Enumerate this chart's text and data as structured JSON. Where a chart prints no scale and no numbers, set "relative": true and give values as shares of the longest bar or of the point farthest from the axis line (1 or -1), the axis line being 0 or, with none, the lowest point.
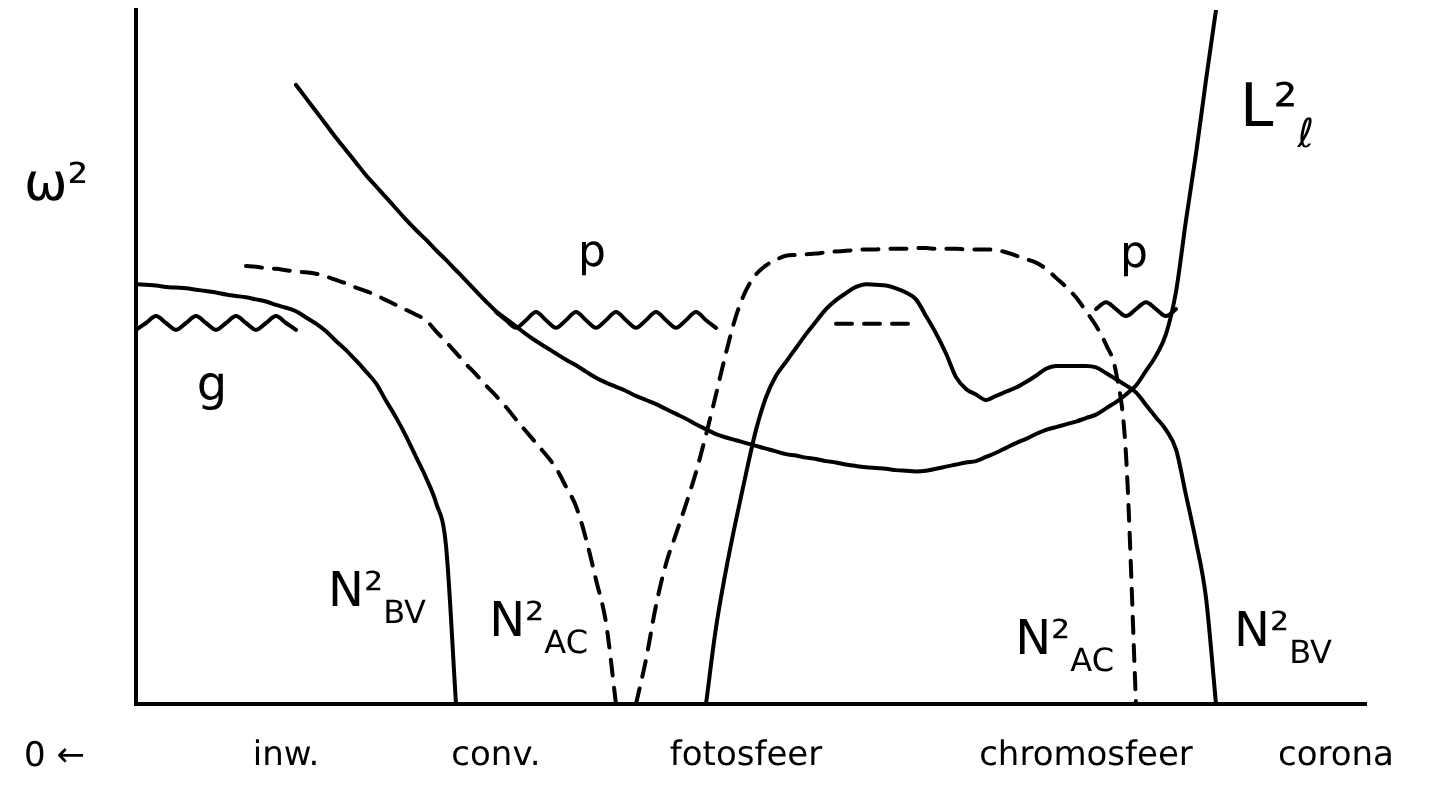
{
  "chart_data": {
    "type": "line",
    "relative": true,
    "ylabel": "ω²",
    "annotations": [
      "0 ←"
    ],
    "marker": "none",
    "categories": [
      null,
      null,
      null,
      null,
      null,
      null,
      null,
      null,
      null,
      null,
      null,
      null,
      null,
      null,
      null,
      "inw.",
      null,
      null,
      null,
      null,
      null,
      null,
      null,
      null,
      null,
      null,
      null,
      null,
      null,
      null,
      null,
      null,
      null,
      null,
      null,
      null,
      "conv.",
      null,
      null,
      null,
      null,
      null,
      null,
      null,
      null,
      null,
      null,
      null,
      null,
      null,
      null,
      null,
      null,
      null,
      null,
      null,
      null,
      null,
      null,
      null,
      null,
      "fotosfeer",
      null,
      null,
      null,
      null,
      null,
      null,
      null,
      null,
      null,
      null,
      null,
      null,
      null,
      null,
      null,
      null,
      null,
      null,
      null,
      null,
      null,
      null,
      null,
      null,
      null,
      null,
      null,
      null,
      null,
      null,
      null,
      null,
      null,
      "chromosfeer",
      null,
      null,
      null,
      null,
      null,
      null,
      null,
      null,
      null,
      null,
      null,
      null,
      null,
      null,
      null,
      null,
      null,
      null,
      null,
      null,
      null,
      null,
      null,
      null,
      "corona",
      null,
      null,
      null
    ],
    "series": [
      {
        "name": "L²$_{ℓ}$",
        "color": "#000000",
        "line_style": "solid",
        "values": [
          null,
          null,
          null,
          null,
          null,
          null,
          null,
          null,
          null,
          null,
          null,
          null,
          null,
          null,
          null,
          null,
          0.892,
          0.873,
          0.854,
          0.835,
          0.816,
          0.798,
          0.78,
          0.762,
          0.746,
          0.73,
          0.714,
          0.698,
          0.683,
          0.669,
          0.654,
          0.64,
          0.625,
          0.61,
          0.595,
          0.58,
          0.566,
          0.555,
          0.544,
          0.533,
          0.523,
          0.514,
          0.505,
          0.496,
          0.488,
          0.479,
          0.47,
          0.463,
          0.457,
          0.451,
          0.444,
          0.438,
          0.432,
          0.425,
          0.418,
          0.411,
          0.403,
          0.396,
          0.389,
          0.384,
          0.38,
          0.376,
          0.372,
          0.368,
          0.364,
          0.36,
          0.358,
          0.355,
          0.353,
          0.35,
          0.348,
          0.345,
          0.343,
          0.341,
          0.34,
          0.339,
          0.337,
          0.336,
          0.335,
          0.336,
          0.339,
          0.342,
          0.345,
          0.348,
          0.35,
          0.356,
          0.362,
          0.369,
          0.376,
          0.382,
          0.389,
          0.395,
          0.399,
          0.403,
          0.407,
          0.412,
          0.417,
          0.426,
          0.435,
          0.446,
          0.459,
          0.48,
          0.502,
          0.533,
          0.594,
          0.697,
          0.793,
          0.899,
          1,
          null,
          null,
          null,
          null,
          null,
          null,
          null,
          null,
          null,
          null,
          null,
          null,
          null,
          null,
          null
        ]
      },
      {
        "name": "N²$_{BV}$",
        "color": "#000000",
        "line_style": "solid",
        "values": [
          0.605,
          0.604,
          0.603,
          0.601,
          0.6,
          0.599,
          0.597,
          0.595,
          0.593,
          0.59,
          0.588,
          0.586,
          0.583,
          0.58,
          0.575,
          0.571,
          0.566,
          0.557,
          0.548,
          0.537,
          0.523,
          0.51,
          0.495,
          0.479,
          0.462,
          0.437,
          0.413,
          0.386,
          0.356,
          0.326,
          0.29,
          0.228,
          0,
          null,
          null,
          null,
          null,
          null,
          null,
          null,
          null,
          null,
          null,
          null,
          null,
          null,
          null,
          null,
          null,
          null,
          null,
          null,
          null,
          null,
          null,
          null,
          null,
          null,
          null,
          null,
          null,
          null,
          null,
          null,
          null,
          null,
          null,
          null,
          null,
          null,
          null,
          null,
          null,
          null,
          null,
          null,
          null,
          null,
          null,
          null,
          null,
          null,
          null,
          null,
          null,
          null,
          null,
          null,
          null,
          null,
          null,
          null,
          null,
          null,
          null,
          null,
          null,
          null,
          null,
          null,
          null,
          null,
          null,
          null,
          null,
          null,
          null,
          null,
          null,
          null,
          null,
          null,
          null,
          null,
          null,
          null,
          null,
          null,
          null,
          null,
          null,
          null,
          null,
          null
        ]
      },
      {
        "name": "N²$_{AC}$",
        "color": "#000000",
        "line_style": "dashed",
        "values": [
          null,
          null,
          null,
          null,
          null,
          null,
          null,
          null,
          null,
          null,
          null,
          0.631,
          0.63,
          0.628,
          0.627,
          0.625,
          0.623,
          0.622,
          0.62,
          0.616,
          0.611,
          0.606,
          0.6,
          0.595,
          0.589,
          0.582,
          0.575,
          0.568,
          0.561,
          0.553,
          0.537,
          0.522,
          0.506,
          0.49,
          0.475,
          0.459,
          0.444,
          0.428,
          0.41,
          0.393,
          0.376,
          0.359,
          0.34,
          0.313,
          0.285,
          0.238,
          0.179,
          0.117,
          0,
          null,
          null,
          null,
          null,
          null,
          null,
          null,
          null,
          null,
          null,
          null,
          null,
          null,
          null,
          null,
          null,
          null,
          null,
          null,
          null,
          null,
          null,
          null,
          null,
          null,
          null,
          null,
          null,
          null,
          null,
          null,
          null,
          null,
          null,
          null,
          null,
          null,
          null,
          null,
          null,
          null,
          null,
          null,
          null,
          null,
          null,
          null,
          null,
          null,
          null,
          null,
          null,
          null,
          null,
          null,
          null,
          null,
          null,
          null,
          null,
          null,
          null,
          null,
          null,
          null,
          null,
          null,
          null,
          null,
          null,
          null,
          null,
          null,
          null,
          null
        ]
      },
      {
        "name": "N²$_{AC}$",
        "color": "#000000",
        "line_style": "dashed",
        "values": [
          null,
          null,
          null,
          null,
          null,
          null,
          null,
          null,
          null,
          null,
          null,
          null,
          null,
          null,
          null,
          null,
          null,
          null,
          null,
          null,
          null,
          null,
          null,
          null,
          null,
          null,
          null,
          null,
          null,
          null,
          null,
          null,
          null,
          null,
          null,
          null,
          null,
          null,
          null,
          null,
          null,
          null,
          null,
          null,
          null,
          null,
          null,
          null,
          null,
          null,
          0,
          0.064,
          0.142,
          0.202,
          0.245,
          0.288,
          0.334,
          0.388,
          0.446,
          0.506,
          0.559,
          0.596,
          0.619,
          0.632,
          0.64,
          0.646,
          0.647,
          0.648,
          0.649,
          0.651,
          0.652,
          0.653,
          0.654,
          0.655,
          0.655,
          0.656,
          0.656,
          0.656,
          0.657,
          0.657,
          0.656,
          0.656,
          0.656,
          0.655,
          0.655,
          0.655,
          0.654,
          0.651,
          0.646,
          0.641,
          0.636,
          0.627,
          0.614,
          0.601,
          0.586,
          0.566,
          0.545,
          0.518,
          0.478,
          0.359,
          0,
          null,
          null,
          null,
          null,
          null,
          null,
          null,
          null,
          null,
          null,
          null,
          null,
          null,
          null,
          null,
          null,
          null,
          null,
          null,
          null,
          null,
          null,
          null
        ]
      },
      {
        "color": "#000000",
        "line_style": "dashed",
        "values": [
          null,
          null,
          null,
          null,
          null,
          null,
          null,
          null,
          null,
          null,
          null,
          null,
          null,
          null,
          null,
          null,
          null,
          null,
          null,
          null,
          null,
          null,
          null,
          null,
          null,
          null,
          null,
          null,
          null,
          null,
          null,
          null,
          null,
          null,
          null,
          null,
          null,
          null,
          null,
          null,
          null,
          null,
          null,
          null,
          null,
          null,
          null,
          null,
          null,
          null,
          null,
          null,
          null,
          null,
          null,
          null,
          null,
          null,
          null,
          null,
          null,
          null,
          null,
          null,
          null,
          null,
          null,
          null,
          null,
          null,
          0.548,
          0.548,
          0.548,
          0.548,
          0.548,
          0.548,
          0.548,
          0.548,
          0.548,
          null,
          null,
          null,
          null,
          null,
          null,
          null,
          null,
          null,
          null,
          null,
          null,
          null,
          null,
          null,
          null,
          null,
          null,
          null,
          null,
          null,
          null,
          null,
          null,
          null,
          null,
          null,
          null,
          null,
          null,
          null,
          null,
          null,
          null,
          null,
          null,
          null,
          null,
          null,
          null,
          null,
          null,
          null,
          null,
          null
        ]
      },
      {
        "name": "N²$_{BV}$",
        "color": "#000000",
        "line_style": "solid",
        "values": [
          null,
          null,
          null,
          null,
          null,
          null,
          null,
          null,
          null,
          null,
          null,
          null,
          null,
          null,
          null,
          null,
          null,
          null,
          null,
          null,
          null,
          null,
          null,
          null,
          null,
          null,
          null,
          null,
          null,
          null,
          null,
          null,
          null,
          null,
          null,
          null,
          null,
          null,
          null,
          null,
          null,
          null,
          null,
          null,
          null,
          null,
          null,
          null,
          null,
          null,
          null,
          null,
          null,
          null,
          null,
          null,
          null,
          0,
          0.11,
          0.193,
          0.265,
          0.332,
          0.395,
          0.442,
          0.473,
          0.493,
          0.513,
          0.533,
          0.551,
          0.569,
          0.582,
          0.592,
          0.601,
          0.605,
          0.604,
          0.603,
          0.599,
          0.593,
          0.583,
          0.559,
          0.534,
          0.505,
          0.471,
          0.454,
          0.446,
          0.438,
          0.444,
          0.45,
          0.456,
          0.464,
          0.473,
          0.483,
          0.487,
          0.487,
          0.487,
          0.487,
          0.485,
          0.477,
          0.468,
          0.459,
          0.449,
          0.431,
          0.413,
          0.395,
          0.367,
          0.301,
          0.234,
          0.153,
          0,
          null,
          null,
          null,
          null,
          null,
          null,
          null,
          null,
          null,
          null,
          null,
          null,
          null,
          null,
          null
        ]
      },
      {
        "name": "g",
        "color": "#000000",
        "line_style": "solid",
        "values": [
          0.539,
          0.549,
          0.559,
          0.549,
          0.539,
          0.549,
          0.559,
          0.549,
          0.539,
          0.549,
          0.559,
          0.549,
          0.539,
          0.549,
          0.559,
          0.549,
          0.539,
          null,
          null,
          null,
          null,
          null,
          null,
          null,
          null,
          null,
          null,
          null,
          null,
          null,
          null,
          null,
          null,
          null,
          null,
          null,
          null,
          null,
          null,
          null,
          null,
          null,
          null,
          null,
          null,
          null,
          null,
          null,
          null,
          null,
          null,
          null,
          null,
          null,
          null,
          null,
          null,
          null,
          null,
          null,
          null,
          null,
          null,
          null,
          null,
          null,
          null,
          null,
          null,
          null,
          null,
          null,
          null,
          null,
          null,
          null,
          null,
          null,
          null,
          null,
          null,
          null,
          null,
          null,
          null,
          null,
          null,
          null,
          null,
          null,
          null,
          null,
          null,
          null,
          null,
          null,
          null,
          null,
          null,
          null,
          null,
          null,
          null,
          null,
          null,
          null,
          null,
          null,
          null,
          null,
          null,
          null,
          null,
          null,
          null,
          null,
          null,
          null,
          null,
          null,
          null,
          null,
          null,
          null
        ]
      },
      {
        "name": "p",
        "color": "#000000",
        "line_style": "solid",
        "values": [
          null,
          null,
          null,
          null,
          null,
          null,
          null,
          null,
          null,
          null,
          null,
          null,
          null,
          null,
          null,
          null,
          null,
          null,
          null,
          null,
          null,
          null,
          null,
          null,
          null,
          null,
          null,
          null,
          null,
          null,
          null,
          null,
          null,
          null,
          null,
          null,
          0.565,
          0.553,
          0.542,
          0.553,
          0.565,
          0.553,
          0.542,
          0.553,
          0.565,
          0.553,
          0.542,
          0.553,
          0.565,
          0.553,
          0.542,
          0.553,
          0.565,
          0.553,
          0.542,
          0.553,
          0.565,
          0.553,
          0.542,
          null,
          null,
          null,
          null,
          null,
          null,
          null,
          null,
          null,
          null,
          null,
          null,
          null,
          null,
          null,
          null,
          null,
          null,
          null,
          null,
          null,
          null,
          null,
          null,
          null,
          null,
          null,
          null,
          null,
          null,
          null,
          null,
          null,
          null,
          null,
          null,
          null,
          null,
          null,
          null,
          null,
          null,
          null,
          null,
          null,
          null,
          null,
          null,
          null,
          null,
          null,
          null,
          null,
          null,
          null,
          null,
          null,
          null,
          null,
          null,
          null,
          null,
          null,
          null,
          null
        ]
      },
      {
        "name": "p",
        "color": "#000000",
        "line_style": "solid",
        "values": [
          null,
          null,
          null,
          null,
          null,
          null,
          null,
          null,
          null,
          null,
          null,
          null,
          null,
          null,
          null,
          null,
          null,
          null,
          null,
          null,
          null,
          null,
          null,
          null,
          null,
          null,
          null,
          null,
          null,
          null,
          null,
          null,
          null,
          null,
          null,
          null,
          null,
          null,
          null,
          null,
          null,
          null,
          null,
          null,
          null,
          null,
          null,
          null,
          null,
          null,
          null,
          null,
          null,
          null,
          null,
          null,
          null,
          null,
          null,
          null,
          null,
          null,
          null,
          null,
          null,
          null,
          null,
          null,
          null,
          null,
          null,
          null,
          null,
          null,
          null,
          null,
          null,
          null,
          null,
          null,
          null,
          null,
          null,
          null,
          null,
          null,
          null,
          null,
          null,
          null,
          null,
          null,
          null,
          null,
          null,
          null,
          0.569,
          0.579,
          0.569,
          0.559,
          0.569,
          0.579,
          0.569,
          0.559,
          0.569,
          null,
          null,
          null,
          null,
          null,
          null,
          null,
          null,
          null,
          null,
          null,
          null,
          null,
          null,
          null,
          null,
          null,
          null,
          null
        ]
      }
    ]
  }
}
